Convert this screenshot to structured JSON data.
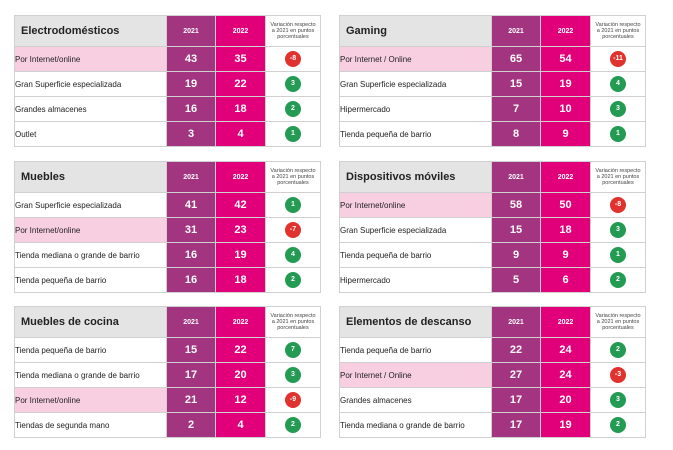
{
  "colors": {
    "year2021": "#a3347f",
    "year2022": "#e2007a",
    "positive": "#239b52",
    "negative": "#e0322e",
    "online_highlight": "#f7cfe1"
  },
  "panels": [
    {
      "title": "Electrodomésticos",
      "y1": "2021",
      "y2": "2022",
      "var_label": "Variación respecto a 2021 en puntos porcentuales",
      "rows": [
        {
          "label": "Por Internet/online",
          "v2021": "43",
          "v2022": "35",
          "var": "-8",
          "online": true
        },
        {
          "label": "Gran Superficie especializada",
          "v2021": "19",
          "v2022": "22",
          "var": "3",
          "online": false
        },
        {
          "label": "Grandes almacenes",
          "v2021": "16",
          "v2022": "18",
          "var": "2",
          "online": false
        },
        {
          "label": "Outlet",
          "v2021": "3",
          "v2022": "4",
          "var": "1",
          "online": false
        }
      ]
    },
    {
      "title": "Gaming",
      "y1": "2021",
      "y2": "2022",
      "var_label": "Variación respecto a 2021 en puntos porcentuales",
      "rows": [
        {
          "label": "Por Internet / Online",
          "v2021": "65",
          "v2022": "54",
          "var": "-11",
          "online": true
        },
        {
          "label": "Gran Superficie especializada",
          "v2021": "15",
          "v2022": "19",
          "var": "4",
          "online": false
        },
        {
          "label": "Hipermercado",
          "v2021": "7",
          "v2022": "10",
          "var": "3",
          "online": false
        },
        {
          "label": "Tienda pequeña de barrio",
          "v2021": "8",
          "v2022": "9",
          "var": "1",
          "online": false
        }
      ]
    },
    {
      "title": "Muebles",
      "y1": "2021",
      "y2": "2022",
      "var_label": "Variación respecto a 2021 en puntos porcentuales",
      "rows": [
        {
          "label": "Gran Superficie especializada",
          "v2021": "41",
          "v2022": "42",
          "var": "1",
          "online": false
        },
        {
          "label": "Por Internet/online",
          "v2021": "31",
          "v2022": "23",
          "var": "-7",
          "online": true
        },
        {
          "label": "Tienda mediana o grande de barrio",
          "v2021": "16",
          "v2022": "19",
          "var": "4",
          "online": false
        },
        {
          "label": "Tienda pequeña de barrio",
          "v2021": "16",
          "v2022": "18",
          "var": "2",
          "online": false
        }
      ]
    },
    {
      "title": "Dispositivos móviles",
      "y1": "2021",
      "y2": "2022",
      "var_label": "Variación respecto a 2021 en puntos porcentuales",
      "rows": [
        {
          "label": "Por Internet/online",
          "v2021": "58",
          "v2022": "50",
          "var": "-8",
          "online": true
        },
        {
          "label": "Gran Superficie especializada",
          "v2021": "15",
          "v2022": "18",
          "var": "3",
          "online": false
        },
        {
          "label": "Tienda pequeña de barrio",
          "v2021": "9",
          "v2022": "9",
          "var": "1",
          "online": false
        },
        {
          "label": "Hipermercado",
          "v2021": "5",
          "v2022": "6",
          "var": "2",
          "online": false
        }
      ]
    },
    {
      "title": "Muebles de cocina",
      "y1": "2021",
      "y2": "2022",
      "var_label": "Variación respecto a 2021 en puntos porcentuales",
      "rows": [
        {
          "label": "Tienda pequeña de barrio",
          "v2021": "15",
          "v2022": "22",
          "var": "7",
          "online": false
        },
        {
          "label": "Tienda mediana o grande de barrio",
          "v2021": "17",
          "v2022": "20",
          "var": "3",
          "online": false
        },
        {
          "label": "Por Internet/online",
          "v2021": "21",
          "v2022": "12",
          "var": "-9",
          "online": true
        },
        {
          "label": "Tiendas de segunda mano",
          "v2021": "2",
          "v2022": "4",
          "var": "2",
          "online": false
        }
      ]
    },
    {
      "title": "Elementos de descanso",
      "y1": "2021",
      "y2": "2022",
      "var_label": "Variación respecto a 2021 en puntos porcentuales",
      "rows": [
        {
          "label": "Tienda pequeña de barrio",
          "v2021": "22",
          "v2022": "24",
          "var": "2",
          "online": false
        },
        {
          "label": "Por Internet / Online",
          "v2021": "27",
          "v2022": "24",
          "var": "-3",
          "online": true
        },
        {
          "label": "Grandes almacenes",
          "v2021": "17",
          "v2022": "20",
          "var": "3",
          "online": false
        },
        {
          "label": "Tienda mediana o grande de barrio",
          "v2021": "17",
          "v2022": "19",
          "var": "2",
          "online": false
        }
      ]
    }
  ]
}
